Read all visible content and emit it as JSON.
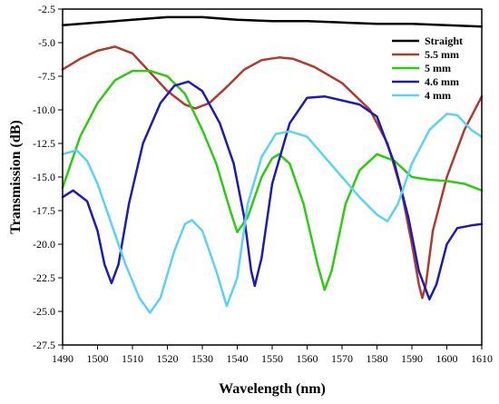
{
  "chart_data": {
    "type": "line",
    "xlabel": "Wavelength (nm)",
    "ylabel": "Transmission (dB)",
    "xlim": [
      1490,
      1610
    ],
    "ylim": [
      -27.5,
      -2.5
    ],
    "xticks": [
      "1490",
      "1500",
      "1510",
      "1520",
      "1530",
      "1540",
      "1550",
      "1560",
      "1570",
      "1580",
      "1590",
      "1600",
      "1610"
    ],
    "yticks": [
      "-2.5",
      "-5.0",
      "-7.5",
      "-10.0",
      "-12.5",
      "-15.0",
      "-17.5",
      "-20.0",
      "-22.5",
      "-25.0",
      "-27.5"
    ],
    "grid": false,
    "legend_position": "top-right",
    "series": [
      {
        "name": "Straight",
        "color": "#000000",
        "points": [
          [
            1490,
            -3.7
          ],
          [
            1500,
            -3.5
          ],
          [
            1510,
            -3.3
          ],
          [
            1520,
            -3.1
          ],
          [
            1530,
            -3.1
          ],
          [
            1540,
            -3.3
          ],
          [
            1550,
            -3.4
          ],
          [
            1560,
            -3.4
          ],
          [
            1570,
            -3.5
          ],
          [
            1580,
            -3.6
          ],
          [
            1590,
            -3.6
          ],
          [
            1600,
            -3.7
          ],
          [
            1610,
            -3.8
          ]
        ]
      },
      {
        "name": "5.5 mm",
        "color": "#b03a2e",
        "points": [
          [
            1490,
            -7.0
          ],
          [
            1495,
            -6.2
          ],
          [
            1500,
            -5.6
          ],
          [
            1505,
            -5.3
          ],
          [
            1510,
            -5.8
          ],
          [
            1515,
            -7.2
          ],
          [
            1520,
            -8.6
          ],
          [
            1525,
            -9.6
          ],
          [
            1528,
            -9.9
          ],
          [
            1532,
            -9.5
          ],
          [
            1537,
            -8.3
          ],
          [
            1542,
            -7.0
          ],
          [
            1547,
            -6.3
          ],
          [
            1552,
            -6.1
          ],
          [
            1556,
            -6.2
          ],
          [
            1562,
            -6.8
          ],
          [
            1570,
            -8.0
          ],
          [
            1578,
            -10.0
          ],
          [
            1583,
            -12.5
          ],
          [
            1587,
            -16.0
          ],
          [
            1590,
            -20.0
          ],
          [
            1592,
            -23.0
          ],
          [
            1593,
            -24.0
          ],
          [
            1594,
            -23.0
          ],
          [
            1596,
            -19.0
          ],
          [
            1600,
            -15.0
          ],
          [
            1605,
            -11.5
          ],
          [
            1610,
            -9.0
          ]
        ]
      },
      {
        "name": "5 mm",
        "color": "#2ecc11",
        "points": [
          [
            1490,
            -15.8
          ],
          [
            1495,
            -12.0
          ],
          [
            1500,
            -9.5
          ],
          [
            1505,
            -7.8
          ],
          [
            1510,
            -7.1
          ],
          [
            1515,
            -7.1
          ],
          [
            1520,
            -7.5
          ],
          [
            1525,
            -8.8
          ],
          [
            1530,
            -11.5
          ],
          [
            1534,
            -14.0
          ],
          [
            1538,
            -17.5
          ],
          [
            1540,
            -19.1
          ],
          [
            1543,
            -18.0
          ],
          [
            1547,
            -15.0
          ],
          [
            1550,
            -13.6
          ],
          [
            1552,
            -13.3
          ],
          [
            1555,
            -14.0
          ],
          [
            1559,
            -17.0
          ],
          [
            1563,
            -21.5
          ],
          [
            1565,
            -23.4
          ],
          [
            1567,
            -22.0
          ],
          [
            1571,
            -17.0
          ],
          [
            1575,
            -14.5
          ],
          [
            1580,
            -13.3
          ],
          [
            1585,
            -13.8
          ],
          [
            1590,
            -15.0
          ],
          [
            1595,
            -15.2
          ],
          [
            1600,
            -15.3
          ],
          [
            1605,
            -15.5
          ],
          [
            1610,
            -16.0
          ]
        ]
      },
      {
        "name": "4.6 mm",
        "color": "#1c1cb5",
        "points": [
          [
            1490,
            -16.5
          ],
          [
            1493,
            -16.0
          ],
          [
            1497,
            -16.8
          ],
          [
            1500,
            -19.0
          ],
          [
            1502,
            -21.5
          ],
          [
            1504,
            -22.9
          ],
          [
            1506,
            -21.5
          ],
          [
            1509,
            -17.0
          ],
          [
            1513,
            -12.5
          ],
          [
            1518,
            -9.5
          ],
          [
            1522,
            -8.2
          ],
          [
            1526,
            -7.9
          ],
          [
            1530,
            -8.6
          ],
          [
            1535,
            -11.0
          ],
          [
            1539,
            -14.0
          ],
          [
            1542,
            -18.0
          ],
          [
            1544,
            -22.0
          ],
          [
            1545,
            -23.1
          ],
          [
            1547,
            -21.0
          ],
          [
            1550,
            -15.5
          ],
          [
            1555,
            -11.0
          ],
          [
            1560,
            -9.1
          ],
          [
            1565,
            -9.0
          ],
          [
            1570,
            -9.3
          ],
          [
            1575,
            -9.6
          ],
          [
            1580,
            -10.5
          ],
          [
            1585,
            -14.0
          ],
          [
            1589,
            -18.0
          ],
          [
            1592,
            -22.0
          ],
          [
            1595,
            -24.1
          ],
          [
            1597,
            -23.0
          ],
          [
            1600,
            -20.0
          ],
          [
            1603,
            -18.8
          ],
          [
            1607,
            -18.6
          ],
          [
            1610,
            -18.5
          ]
        ]
      },
      {
        "name": "4 mm",
        "color": "#5ad2f4",
        "points": [
          [
            1490,
            -13.3
          ],
          [
            1494,
            -13.0
          ],
          [
            1497,
            -13.8
          ],
          [
            1500,
            -15.5
          ],
          [
            1504,
            -18.5
          ],
          [
            1508,
            -21.5
          ],
          [
            1512,
            -24.0
          ],
          [
            1515,
            -25.1
          ],
          [
            1518,
            -24.0
          ],
          [
            1522,
            -20.5
          ],
          [
            1525,
            -18.5
          ],
          [
            1527,
            -18.2
          ],
          [
            1530,
            -19.0
          ],
          [
            1534,
            -22.0
          ],
          [
            1537,
            -24.6
          ],
          [
            1540,
            -22.5
          ],
          [
            1543,
            -17.0
          ],
          [
            1547,
            -13.5
          ],
          [
            1551,
            -11.8
          ],
          [
            1555,
            -11.6
          ],
          [
            1560,
            -12.0
          ],
          [
            1565,
            -13.5
          ],
          [
            1570,
            -15.0
          ],
          [
            1575,
            -16.5
          ],
          [
            1580,
            -17.8
          ],
          [
            1583,
            -18.3
          ],
          [
            1586,
            -17.0
          ],
          [
            1590,
            -14.0
          ],
          [
            1595,
            -11.5
          ],
          [
            1600,
            -10.3
          ],
          [
            1603,
            -10.4
          ],
          [
            1607,
            -11.5
          ],
          [
            1610,
            -12.0
          ]
        ]
      }
    ]
  }
}
